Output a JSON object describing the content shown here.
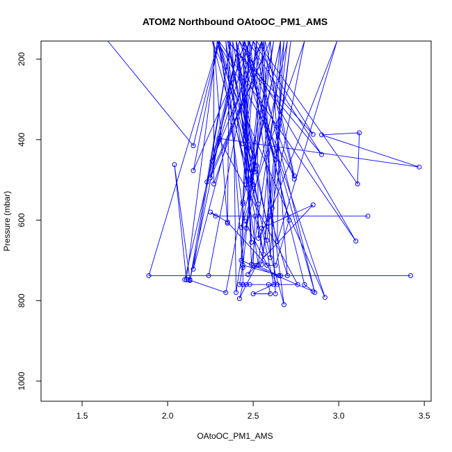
{
  "chart_data": {
    "type": "line",
    "title": "ATOM2 Northbound OAtoOC_PM1_AMS",
    "xlabel": "OAtoOC_PM1_AMS",
    "ylabel": "Pressure (mbar)",
    "xlim": [
      1.26,
      3.54
    ],
    "ylim": [
      1050,
      155
    ],
    "y_inverted": true,
    "x_ticks": [
      1.5,
      2.0,
      2.5,
      3.0,
      3.5
    ],
    "x_tick_labels": [
      "1.5",
      "2.0",
      "2.5",
      "3.0",
      "3.5"
    ],
    "y_ticks": [
      200,
      400,
      600,
      800,
      1000
    ],
    "y_tick_labels": [
      "200",
      "400",
      "600",
      "800",
      "1000"
    ],
    "grid": false,
    "legend": "none",
    "color": "#0000ff",
    "series": [
      {
        "values": [
          [
            1.65,
            155
          ],
          [
            2.15,
            415
          ],
          [
            2.3,
            155
          ],
          [
            2.15,
            477
          ],
          [
            2.48,
            155
          ],
          [
            2.23,
            505
          ],
          [
            2.6,
            155
          ],
          [
            2.25,
            495
          ],
          [
            2.42,
            155
          ],
          [
            2.1,
            748
          ],
          [
            2.42,
            155
          ],
          [
            2.13,
            750
          ],
          [
            2.37,
            155
          ],
          [
            2.15,
            722
          ],
          [
            2.5,
            155
          ],
          [
            2.24,
            738
          ],
          [
            3.42,
            738
          ],
          [
            1.89,
            738
          ],
          [
            2.3,
            155
          ],
          [
            2.53,
            560
          ],
          [
            2.35,
            155
          ],
          [
            2.58,
            607
          ],
          [
            2.38,
            155
          ],
          [
            2.4,
            780
          ],
          [
            2.62,
            155
          ],
          [
            2.34,
            780
          ],
          [
            2.12,
            748
          ],
          [
            2.13,
            748
          ],
          [
            2.04,
            462
          ],
          [
            2.11,
            748
          ],
          [
            2.29,
            155
          ],
          [
            2.51,
            480
          ],
          [
            2.4,
            155
          ],
          [
            2.52,
            465
          ],
          [
            2.3,
            155
          ],
          [
            2.5,
            512
          ],
          [
            2.4,
            155
          ],
          [
            2.63,
            450
          ],
          [
            2.44,
            155
          ],
          [
            2.46,
            512
          ],
          [
            2.47,
            155
          ],
          [
            2.9,
            437
          ],
          [
            2.35,
            155
          ],
          [
            2.85,
            387
          ],
          [
            2.5,
            155
          ],
          [
            2.86,
            780
          ],
          [
            2.45,
            155
          ],
          [
            2.74,
            498
          ],
          [
            2.55,
            155
          ],
          [
            2.44,
            410
          ],
          [
            2.52,
            155
          ],
          [
            2.44,
            555
          ],
          [
            2.48,
            155
          ],
          [
            2.68,
            810
          ],
          [
            2.26,
            155
          ],
          [
            2.92,
            792
          ],
          [
            2.42,
            155
          ],
          [
            3.1,
            652
          ],
          [
            2.3,
            155
          ],
          [
            2.45,
            602
          ],
          [
            2.64,
            760
          ],
          [
            2.44,
            760
          ],
          [
            2.42,
            795
          ],
          [
            2.46,
            760
          ],
          [
            2.52,
            712
          ],
          [
            2.65,
            738
          ],
          [
            2.66,
            738
          ],
          [
            2.44,
            712
          ],
          [
            2.42,
            760
          ],
          [
            2.48,
            760
          ],
          [
            2.59,
            760
          ],
          [
            2.6,
            783
          ],
          [
            2.5,
            783
          ],
          [
            2.62,
            760
          ],
          [
            2.55,
            620
          ],
          [
            2.85,
            562
          ],
          [
            2.47,
            735
          ],
          [
            2.5,
            712
          ],
          [
            2.51,
            590
          ],
          [
            3.17,
            590
          ],
          [
            2.28,
            590
          ],
          [
            2.25,
            580
          ],
          [
            2.35,
            605
          ],
          [
            2.58,
            712
          ],
          [
            2.63,
            712
          ],
          [
            2.71,
            600
          ],
          [
            2.45,
            155
          ],
          [
            2.47,
            422
          ],
          [
            2.4,
            155
          ],
          [
            2.49,
            655
          ],
          [
            2.44,
            155
          ],
          [
            2.49,
            710
          ],
          [
            2.68,
            155
          ],
          [
            2.6,
            693
          ],
          [
            2.55,
            155
          ],
          [
            2.63,
            783
          ],
          [
            2.56,
            155
          ],
          [
            2.48,
            508
          ],
          [
            2.66,
            155
          ],
          [
            2.43,
            618
          ],
          [
            2.8,
            155
          ],
          [
            2.61,
            570
          ],
          [
            2.99,
            155
          ],
          [
            2.64,
            654
          ],
          [
            2.66,
            155
          ],
          [
            2.53,
            712
          ],
          [
            2.34,
            155
          ],
          [
            2.44,
            718
          ],
          [
            2.57,
            155
          ],
          [
            2.74,
            490
          ],
          [
            2.29,
            155
          ],
          [
            2.56,
            685
          ],
          [
            2.36,
            155
          ],
          [
            2.35,
            608
          ],
          [
            2.27,
            155
          ],
          [
            2.27,
            510
          ],
          [
            2.55,
            155
          ],
          [
            2.26,
            453
          ],
          [
            2.45,
            155
          ],
          [
            2.8,
            760
          ],
          [
            2.85,
            777
          ],
          [
            2.43,
            700
          ],
          [
            2.44,
            560
          ],
          [
            2.44,
            760
          ],
          [
            2.76,
            760
          ],
          [
            2.3,
            397
          ],
          [
            3.47,
            468
          ],
          [
            2.9,
            388
          ],
          [
            3.12,
            383
          ],
          [
            3.11,
            510
          ],
          [
            2.52,
            155
          ],
          [
            2.53,
            645
          ],
          [
            2.6,
            590
          ],
          [
            2.7,
            738
          ],
          [
            2.6,
            155
          ],
          [
            2.46,
            620
          ],
          [
            2.7,
            155
          ],
          [
            2.55,
            710
          ],
          [
            2.72,
            155
          ],
          [
            2.58,
            650
          ]
        ]
      }
    ]
  }
}
